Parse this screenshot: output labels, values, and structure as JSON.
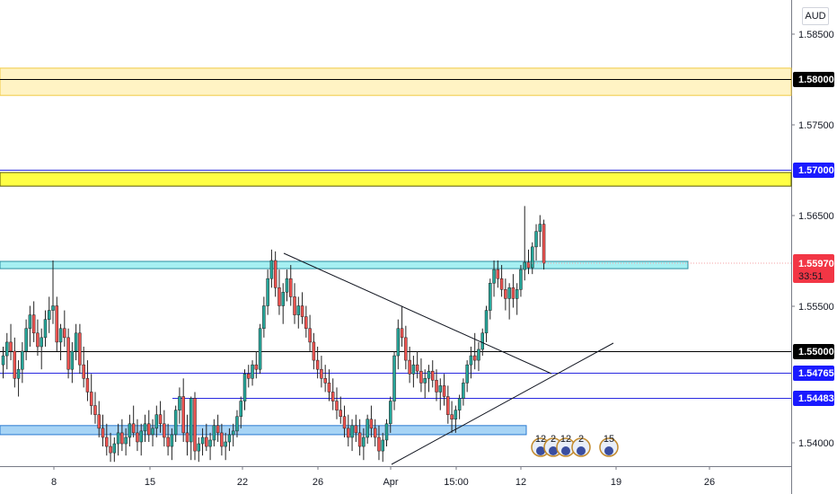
{
  "currency": "AUD",
  "chart_data": {
    "type": "candlestick",
    "y_range": [
      1.5375,
      1.5905
    ],
    "y_ticks": [
      "1.58500",
      "1.57500",
      "1.56500",
      "1.55500",
      "1.54000"
    ],
    "x_ticks": [
      "8",
      "15",
      "22",
      "26",
      "Apr",
      "15:00",
      "12",
      "19",
      "26"
    ],
    "horizontal_levels": [
      {
        "price": 1.58,
        "label": "1.58000",
        "color": "#000000",
        "badge_bg": "#000000"
      },
      {
        "price": 1.57,
        "label": "1.57000",
        "color": "#2a2ae0",
        "badge_bg": "#1a1aff"
      },
      {
        "price": 1.55,
        "label": "1.55000",
        "color": "#000000",
        "badge_bg": "#000000"
      },
      {
        "price": 1.54765,
        "label": "1.54765",
        "color": "#2a2ae0",
        "badge_bg": "#1a1aff"
      },
      {
        "price": 1.54483,
        "label": "1.54483",
        "color": "#2a2ae0",
        "badge_bg": "#1a1aff"
      }
    ],
    "zones": [
      {
        "from": 1.5782,
        "to": 1.5812,
        "color": "#fff3c4",
        "border": "#f0c940"
      },
      {
        "from": 1.5682,
        "to": 1.5697,
        "color": "#ffff44",
        "border": "#5a5a00"
      },
      {
        "from": 1.5591,
        "to": 1.5599,
        "color": "#a6f0f2",
        "border": "#2a8da0"
      },
      {
        "from": 1.5408,
        "to": 1.5418,
        "color": "#a7d4f5",
        "border": "#2a7ad0"
      }
    ],
    "current_price": {
      "label": "1.55970",
      "countdown": "33:51",
      "color": "#f23645"
    },
    "events": [
      "12",
      "2",
      "12",
      "2",
      "15"
    ],
    "candles": [
      [
        1.5485,
        1.5505,
        1.547,
        1.5495
      ],
      [
        1.5495,
        1.552,
        1.548,
        1.551
      ],
      [
        1.551,
        1.553,
        1.549,
        1.55
      ],
      [
        1.55,
        1.5515,
        1.546,
        1.547
      ],
      [
        1.547,
        1.549,
        1.545,
        1.548
      ],
      [
        1.548,
        1.551,
        1.5465,
        1.55
      ],
      [
        1.55,
        1.5535,
        1.549,
        1.5525
      ],
      [
        1.5525,
        1.555,
        1.5505,
        1.554
      ],
      [
        1.554,
        1.5555,
        1.551,
        1.552
      ],
      [
        1.552,
        1.5535,
        1.5495,
        1.5505
      ],
      [
        1.5505,
        1.5525,
        1.548,
        1.5515
      ],
      [
        1.5515,
        1.5545,
        1.5505,
        1.5535
      ],
      [
        1.5535,
        1.556,
        1.552,
        1.5545
      ],
      [
        1.5545,
        1.56,
        1.553,
        1.555
      ],
      [
        1.555,
        1.556,
        1.55,
        1.551
      ],
      [
        1.551,
        1.553,
        1.549,
        1.5525
      ],
      [
        1.5525,
        1.5545,
        1.5505,
        1.5515
      ],
      [
        1.5515,
        1.5525,
        1.547,
        1.548
      ],
      [
        1.548,
        1.551,
        1.5465,
        1.55
      ],
      [
        1.55,
        1.553,
        1.549,
        1.552
      ],
      [
        1.552,
        1.553,
        1.5475,
        1.5485
      ],
      [
        1.5485,
        1.5505,
        1.546,
        1.547
      ],
      [
        1.547,
        1.549,
        1.5445,
        1.5455
      ],
      [
        1.5455,
        1.5475,
        1.543,
        1.544
      ],
      [
        1.544,
        1.5455,
        1.542,
        1.543
      ],
      [
        1.543,
        1.5445,
        1.5405,
        1.5415
      ],
      [
        1.5415,
        1.543,
        1.5395,
        1.5405
      ],
      [
        1.5405,
        1.542,
        1.5385,
        1.5395
      ],
      [
        1.5395,
        1.541,
        1.5378,
        1.5388
      ],
      [
        1.5388,
        1.5405,
        1.5378,
        1.5398
      ],
      [
        1.5398,
        1.542,
        1.5385,
        1.541
      ],
      [
        1.541,
        1.5425,
        1.539,
        1.5398
      ],
      [
        1.5398,
        1.5415,
        1.5385,
        1.5405
      ],
      [
        1.5405,
        1.543,
        1.5395,
        1.542
      ],
      [
        1.542,
        1.544,
        1.5405,
        1.541
      ],
      [
        1.541,
        1.5425,
        1.539,
        1.54
      ],
      [
        1.54,
        1.542,
        1.5385,
        1.5412
      ],
      [
        1.5412,
        1.543,
        1.54,
        1.542
      ],
      [
        1.542,
        1.5435,
        1.54,
        1.5408
      ],
      [
        1.5408,
        1.5425,
        1.5395,
        1.5415
      ],
      [
        1.5415,
        1.544,
        1.5405,
        1.543
      ],
      [
        1.543,
        1.5445,
        1.541,
        1.542
      ],
      [
        1.542,
        1.5435,
        1.5395,
        1.5405
      ],
      [
        1.5405,
        1.542,
        1.5385,
        1.5395
      ],
      [
        1.5395,
        1.5415,
        1.538,
        1.5408
      ],
      [
        1.5408,
        1.544,
        1.54,
        1.5435
      ],
      [
        1.5435,
        1.546,
        1.542,
        1.545
      ],
      [
        1.545,
        1.547,
        1.54,
        1.541
      ],
      [
        1.541,
        1.543,
        1.5385,
        1.54
      ],
      [
        1.54,
        1.545,
        1.538,
        1.5448
      ],
      [
        1.5448,
        1.5455,
        1.538,
        1.539
      ],
      [
        1.539,
        1.5405,
        1.5378,
        1.5398
      ],
      [
        1.5398,
        1.5415,
        1.5385,
        1.5405
      ],
      [
        1.5405,
        1.542,
        1.539,
        1.5395
      ],
      [
        1.5395,
        1.541,
        1.538,
        1.5402
      ],
      [
        1.5402,
        1.5425,
        1.5395,
        1.5418
      ],
      [
        1.5418,
        1.543,
        1.54,
        1.541
      ],
      [
        1.541,
        1.542,
        1.5385,
        1.5395
      ],
      [
        1.5395,
        1.541,
        1.538,
        1.54
      ],
      [
        1.54,
        1.5415,
        1.539,
        1.5408
      ],
      [
        1.5408,
        1.542,
        1.5395,
        1.5412
      ],
      [
        1.5412,
        1.5435,
        1.5405,
        1.5428
      ],
      [
        1.5428,
        1.545,
        1.5415,
        1.5445
      ],
      [
        1.5445,
        1.548,
        1.5435,
        1.5475
      ],
      [
        1.5475,
        1.5485,
        1.546,
        1.547
      ],
      [
        1.547,
        1.549,
        1.5462,
        1.5485
      ],
      [
        1.5485,
        1.55,
        1.547,
        1.548
      ],
      [
        1.548,
        1.553,
        1.5475,
        1.5525
      ],
      [
        1.5525,
        1.556,
        1.5515,
        1.555
      ],
      [
        1.555,
        1.559,
        1.554,
        1.558
      ],
      [
        1.558,
        1.5612,
        1.557,
        1.56
      ],
      [
        1.56,
        1.561,
        1.556,
        1.557
      ],
      [
        1.557,
        1.559,
        1.554,
        1.555
      ],
      [
        1.555,
        1.5575,
        1.553,
        1.5565
      ],
      [
        1.5565,
        1.559,
        1.5555,
        1.558
      ],
      [
        1.558,
        1.5595,
        1.555,
        1.556
      ],
      [
        1.556,
        1.5575,
        1.553,
        1.554
      ],
      [
        1.554,
        1.556,
        1.5525,
        1.555
      ],
      [
        1.555,
        1.5565,
        1.553,
        1.5538
      ],
      [
        1.5538,
        1.555,
        1.5515,
        1.5525
      ],
      [
        1.5525,
        1.554,
        1.55,
        1.551
      ],
      [
        1.551,
        1.552,
        1.548,
        1.549
      ],
      [
        1.549,
        1.5505,
        1.547,
        1.548
      ],
      [
        1.548,
        1.5495,
        1.546,
        1.547
      ],
      [
        1.547,
        1.5485,
        1.5455,
        1.5465
      ],
      [
        1.5465,
        1.548,
        1.5445,
        1.5455
      ],
      [
        1.5455,
        1.547,
        1.5435,
        1.5445
      ],
      [
        1.5445,
        1.546,
        1.5425,
        1.5435
      ],
      [
        1.5435,
        1.545,
        1.542,
        1.5428
      ],
      [
        1.5428,
        1.544,
        1.5405,
        1.5415
      ],
      [
        1.5415,
        1.543,
        1.5395,
        1.5405
      ],
      [
        1.5405,
        1.5425,
        1.539,
        1.5418
      ],
      [
        1.5418,
        1.543,
        1.54,
        1.541
      ],
      [
        1.541,
        1.5425,
        1.5385,
        1.5395
      ],
      [
        1.5395,
        1.5415,
        1.538,
        1.5405
      ],
      [
        1.5405,
        1.543,
        1.5398,
        1.5425
      ],
      [
        1.5425,
        1.544,
        1.5405,
        1.5415
      ],
      [
        1.5415,
        1.5425,
        1.5395,
        1.5405
      ],
      [
        1.5405,
        1.5418,
        1.538,
        1.539
      ],
      [
        1.539,
        1.541,
        1.5378,
        1.5402
      ],
      [
        1.5402,
        1.5425,
        1.5395,
        1.542
      ],
      [
        1.542,
        1.545,
        1.541,
        1.5445
      ],
      [
        1.5445,
        1.55,
        1.5435,
        1.5495
      ],
      [
        1.5495,
        1.5535,
        1.548,
        1.5525
      ],
      [
        1.5525,
        1.555,
        1.5505,
        1.5515
      ],
      [
        1.5515,
        1.5528,
        1.548,
        1.549
      ],
      [
        1.549,
        1.5505,
        1.5465,
        1.5475
      ],
      [
        1.5475,
        1.5495,
        1.546,
        1.5485
      ],
      [
        1.5485,
        1.55,
        1.547,
        1.5478
      ],
      [
        1.5478,
        1.5492,
        1.5455,
        1.5465
      ],
      [
        1.5465,
        1.548,
        1.5448,
        1.547
      ],
      [
        1.547,
        1.5485,
        1.5455,
        1.5478
      ],
      [
        1.5478,
        1.549,
        1.546,
        1.5468
      ],
      [
        1.5468,
        1.548,
        1.5445,
        1.5455
      ],
      [
        1.5455,
        1.547,
        1.5435,
        1.5462
      ],
      [
        1.5462,
        1.5475,
        1.544,
        1.545
      ],
      [
        1.545,
        1.5462,
        1.542,
        1.543
      ],
      [
        1.543,
        1.5445,
        1.541,
        1.5425
      ],
      [
        1.5425,
        1.544,
        1.541,
        1.5435
      ],
      [
        1.5435,
        1.5452,
        1.5425,
        1.5448
      ],
      [
        1.5448,
        1.547,
        1.544,
        1.5465
      ],
      [
        1.5465,
        1.549,
        1.5455,
        1.5485
      ],
      [
        1.5485,
        1.5505,
        1.547,
        1.5495
      ],
      [
        1.5495,
        1.552,
        1.548,
        1.549
      ],
      [
        1.549,
        1.551,
        1.5478,
        1.5502
      ],
      [
        1.5502,
        1.5525,
        1.5495,
        1.552
      ],
      [
        1.552,
        1.555,
        1.551,
        1.5545
      ],
      [
        1.5545,
        1.558,
        1.5535,
        1.5575
      ],
      [
        1.5575,
        1.56,
        1.556,
        1.559
      ],
      [
        1.559,
        1.56,
        1.557,
        1.558
      ],
      [
        1.558,
        1.5595,
        1.556,
        1.5568
      ],
      [
        1.5568,
        1.558,
        1.5545,
        1.5558
      ],
      [
        1.5558,
        1.5575,
        1.5535,
        1.557
      ],
      [
        1.557,
        1.5585,
        1.5548,
        1.5558
      ],
      [
        1.5558,
        1.5575,
        1.554,
        1.5568
      ],
      [
        1.5568,
        1.5595,
        1.556,
        1.559
      ],
      [
        1.559,
        1.566,
        1.5578,
        1.5598
      ],
      [
        1.5598,
        1.5612,
        1.5585,
        1.5592
      ],
      [
        1.5592,
        1.562,
        1.5585,
        1.5615
      ],
      [
        1.5615,
        1.564,
        1.56,
        1.5632
      ],
      [
        1.5632,
        1.565,
        1.5615,
        1.564
      ],
      [
        1.564,
        1.5645,
        1.559,
        1.5597
      ]
    ]
  }
}
